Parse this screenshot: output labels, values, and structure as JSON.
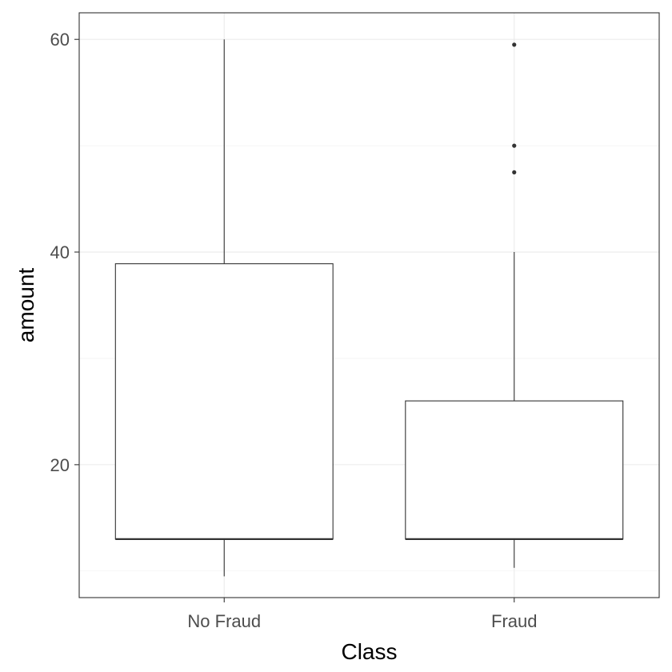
{
  "chart_data": {
    "type": "boxplot",
    "title": "",
    "xlabel": "Class",
    "ylabel": "amount",
    "ylim": [
      7.5,
      62.5
    ],
    "y_ticks": [
      20,
      40,
      60
    ],
    "y_tick_labels": [
      "20",
      "40",
      "60"
    ],
    "y_minor_ticks": [
      10,
      30,
      50
    ],
    "grid": true,
    "categories": [
      "No Fraud",
      "Fraud"
    ],
    "boxes": [
      {
        "category": "No Fraud",
        "whisker_low": 9.5,
        "q1": 13,
        "median": 13,
        "q3": 38.9,
        "whisker_high": 60,
        "outliers": []
      },
      {
        "category": "Fraud",
        "whisker_low": 10.3,
        "q1": 13,
        "median": 13,
        "q3": 26,
        "whisker_high": 40,
        "outliers": [
          47.5,
          50,
          59.5
        ]
      }
    ]
  }
}
